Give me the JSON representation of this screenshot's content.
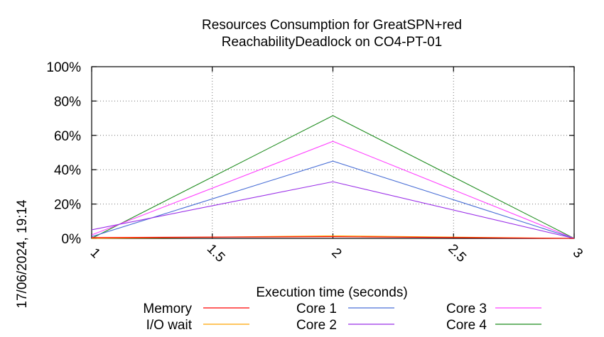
{
  "chart_data": {
    "type": "line",
    "title_line1": "Resources Consumption for GreatSPN+red",
    "title_line2": "ReachabilityDeadlock on CO4-PT-01",
    "xlabel": "Execution time (seconds)",
    "ylabel": "",
    "side_label": "17/06/2024, 19:14",
    "xlim": [
      1,
      3
    ],
    "ylim": [
      0,
      100
    ],
    "x_ticks": [
      "1",
      "1.5",
      "2",
      "2.5",
      "3"
    ],
    "x_tick_values": [
      1,
      1.5,
      2,
      2.5,
      3
    ],
    "y_ticks": [
      "0%",
      "20%",
      "40%",
      "60%",
      "80%",
      "100%"
    ],
    "y_tick_values": [
      0,
      20,
      40,
      60,
      80,
      100
    ],
    "grid": true,
    "legend_position": "bottom",
    "x": [
      1,
      2,
      3
    ],
    "series": [
      {
        "name": "Memory",
        "color": "#ff0000",
        "values": [
          0.5,
          1.0,
          0
        ]
      },
      {
        "name": "I/O wait",
        "color": "#ffa500",
        "values": [
          0,
          1.5,
          0
        ]
      },
      {
        "name": "Core 1",
        "color": "#4a6fd6",
        "values": [
          1,
          45,
          0
        ]
      },
      {
        "name": "Core 2",
        "color": "#9b30e8",
        "values": [
          5,
          33,
          0
        ]
      },
      {
        "name": "Core 3",
        "color": "#ff40ff",
        "values": [
          2,
          56.5,
          0
        ]
      },
      {
        "name": "Core 4",
        "color": "#1e8c1e",
        "values": [
          0,
          71.5,
          0
        ]
      }
    ]
  }
}
